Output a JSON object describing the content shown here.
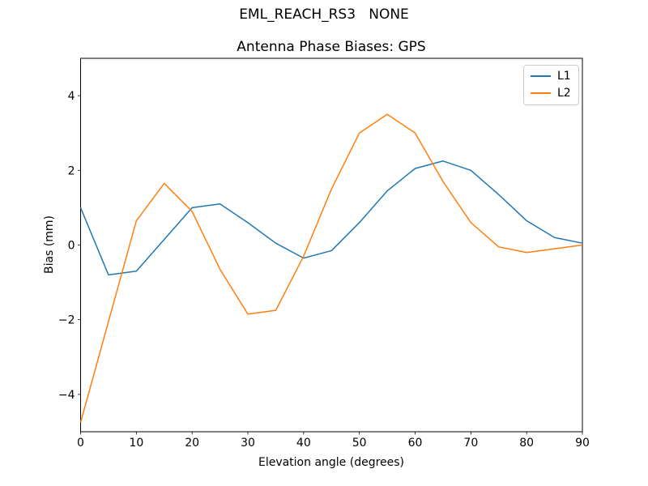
{
  "figure": {
    "background": "#ffffff",
    "text_color": "#000000",
    "frame_color": "#000000",
    "legend_border_color": "#cccccc"
  },
  "chart_data": {
    "type": "line",
    "title": "EML_REACH_RS3   NONE",
    "subtitle": "Antenna Phase Biases: GPS",
    "xlabel": "Elevation angle (degrees)",
    "ylabel": "Bias (mm)",
    "xlim": [
      0,
      90
    ],
    "ylim": [
      -5,
      5
    ],
    "xticks": [
      0,
      10,
      20,
      30,
      40,
      50,
      60,
      70,
      80,
      90
    ],
    "yticks": [
      -4,
      -2,
      0,
      2,
      4
    ],
    "grid": false,
    "legend_position": "upper right",
    "x": [
      0,
      5,
      10,
      15,
      20,
      25,
      30,
      35,
      40,
      45,
      50,
      55,
      60,
      65,
      70,
      75,
      80,
      85,
      90
    ],
    "series": [
      {
        "name": "L1",
        "color": "#1f77b4",
        "values": [
          1.0,
          -0.8,
          -0.7,
          0.15,
          1.0,
          1.1,
          0.6,
          0.05,
          -0.35,
          -0.15,
          0.6,
          1.45,
          2.05,
          2.25,
          2.0,
          1.35,
          0.65,
          0.2,
          0.05
        ]
      },
      {
        "name": "L2",
        "color": "#ff7f0e",
        "values": [
          -4.75,
          -2.05,
          0.65,
          1.65,
          0.9,
          -0.65,
          -1.85,
          -1.75,
          -0.3,
          1.5,
          3.0,
          3.5,
          3.0,
          1.7,
          0.6,
          -0.05,
          -0.2,
          -0.1,
          0.0
        ]
      }
    ]
  }
}
